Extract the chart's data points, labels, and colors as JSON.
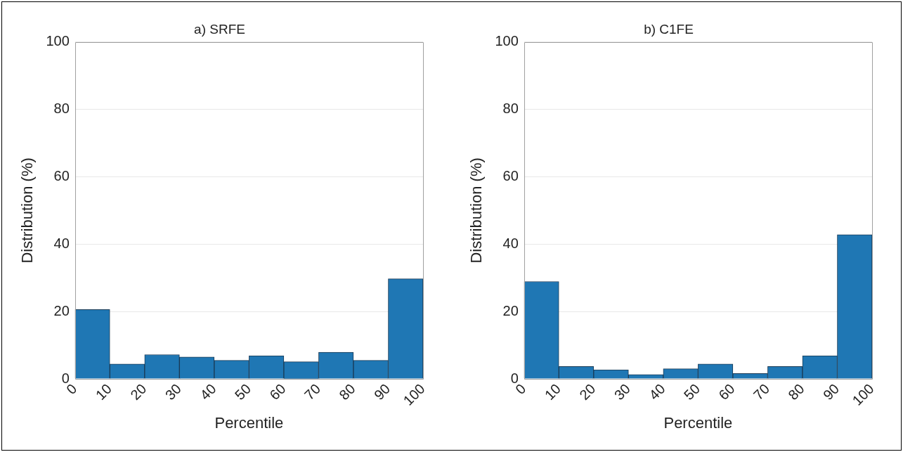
{
  "chart_data": [
    {
      "type": "histogram",
      "title": "a) SRFE",
      "xlabel": "Percentile",
      "ylabel": "Distribution (%)",
      "bins": [
        0,
        10,
        20,
        30,
        40,
        50,
        60,
        70,
        80,
        90,
        100
      ],
      "values": [
        20.6,
        4.4,
        7.2,
        6.5,
        5.5,
        6.9,
        5.1,
        7.9,
        5.5,
        29.7
      ],
      "color": "#1f77b4",
      "xlim": [
        0,
        100
      ],
      "xticks": [
        0,
        10,
        20,
        30,
        40,
        50,
        60,
        70,
        80,
        90,
        100
      ],
      "ylim": [
        0,
        100
      ],
      "yticks": [
        0,
        20,
        40,
        60,
        80,
        100
      ],
      "grid": "y"
    },
    {
      "type": "histogram",
      "title": "b) C1FE",
      "xlabel": "Percentile",
      "ylabel": "Distribution (%)",
      "bins": [
        0,
        10,
        20,
        30,
        40,
        50,
        60,
        70,
        80,
        90,
        100
      ],
      "values": [
        28.9,
        3.7,
        2.7,
        1.3,
        3.0,
        4.4,
        1.6,
        3.7,
        6.9,
        42.8
      ],
      "color": "#1f77b4",
      "xlim": [
        0,
        100
      ],
      "xticks": [
        0,
        10,
        20,
        30,
        40,
        50,
        60,
        70,
        80,
        90,
        100
      ],
      "ylim": [
        0,
        100
      ],
      "yticks": [
        0,
        20,
        40,
        60,
        80,
        100
      ],
      "grid": "y"
    }
  ]
}
